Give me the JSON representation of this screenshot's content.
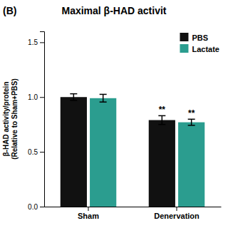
{
  "chart_data": {
    "type": "bar",
    "title": "Maximal β-HAD activit",
    "ylabel": "β-HAD activity/protein\n(Relative to Sham+PBS)",
    "categories": [
      "Sham",
      "Denervation"
    ],
    "series": [
      {
        "name": "PBS",
        "color": "#111111",
        "values": [
          1.0,
          0.79
        ],
        "errors": [
          0.03,
          0.04
        ]
      },
      {
        "name": "Lactate",
        "color": "#2b9d8f",
        "values": [
          0.99,
          0.77
        ],
        "errors": [
          0.035,
          0.028
        ]
      }
    ],
    "ylim": [
      0.0,
      1.6
    ],
    "yticks": [
      {
        "value": 0.0,
        "label": "0.0"
      },
      0.5,
      {
        "value": 1.0,
        "label": "1.0"
      },
      1.5
    ],
    "grid": false,
    "legend": "upper right",
    "annotations": [
      {
        "text": "(B)"
      },
      {
        "text": "**",
        "series": "PBS",
        "category": "Denervation"
      },
      {
        "text": "**",
        "series": "Lactate",
        "category": "Denervation"
      }
    ]
  }
}
